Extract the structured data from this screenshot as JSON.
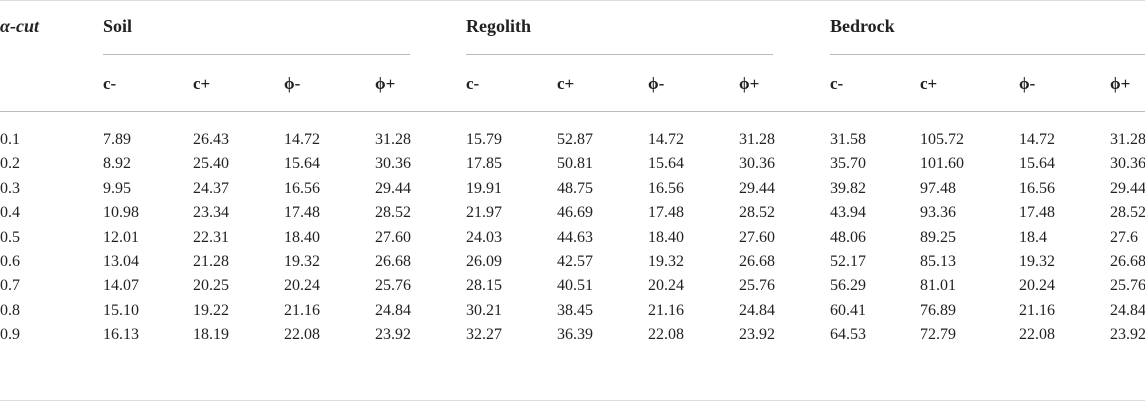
{
  "table": {
    "corner": "α-cut",
    "groups": [
      "Soil",
      "Regolith",
      "Bedrock"
    ],
    "subheaders": [
      "c-",
      "c+",
      "ϕ-",
      "ϕ+",
      "c-",
      "c+",
      "ϕ-",
      "ϕ+",
      "c-",
      "c+",
      "ϕ-",
      "ϕ+"
    ],
    "rows": [
      [
        "0.1",
        "7.89",
        "26.43",
        "14.72",
        "31.28",
        "15.79",
        "52.87",
        "14.72",
        "31.28",
        "31.58",
        "105.72",
        "14.72",
        "31.28"
      ],
      [
        "0.2",
        "8.92",
        "25.40",
        "15.64",
        "30.36",
        "17.85",
        "50.81",
        "15.64",
        "30.36",
        "35.70",
        "101.60",
        "15.64",
        "30.36"
      ],
      [
        "0.3",
        "9.95",
        "24.37",
        "16.56",
        "29.44",
        "19.91",
        "48.75",
        "16.56",
        "29.44",
        "39.82",
        "97.48",
        "16.56",
        "29.44"
      ],
      [
        "0.4",
        "10.98",
        "23.34",
        "17.48",
        "28.52",
        "21.97",
        "46.69",
        "17.48",
        "28.52",
        "43.94",
        "93.36",
        "17.48",
        "28.52"
      ],
      [
        "0.5",
        "12.01",
        "22.31",
        "18.40",
        "27.60",
        "24.03",
        "44.63",
        "18.40",
        "27.60",
        "48.06",
        "89.25",
        "18.4",
        "27.6"
      ],
      [
        "0.6",
        "13.04",
        "21.28",
        "19.32",
        "26.68",
        "26.09",
        "42.57",
        "19.32",
        "26.68",
        "52.17",
        "85.13",
        "19.32",
        "26.68"
      ],
      [
        "0.7",
        "14.07",
        "20.25",
        "20.24",
        "25.76",
        "28.15",
        "40.51",
        "20.24",
        "25.76",
        "56.29",
        "81.01",
        "20.24",
        "25.76"
      ],
      [
        "0.8",
        "15.10",
        "19.22",
        "21.16",
        "24.84",
        "30.21",
        "38.45",
        "21.16",
        "24.84",
        "60.41",
        "76.89",
        "21.16",
        "24.84"
      ],
      [
        "0.9",
        "16.13",
        "18.19",
        "22.08",
        "23.92",
        "32.27",
        "36.39",
        "22.08",
        "23.92",
        "64.53",
        "72.79",
        "22.08",
        "23.92"
      ]
    ]
  }
}
